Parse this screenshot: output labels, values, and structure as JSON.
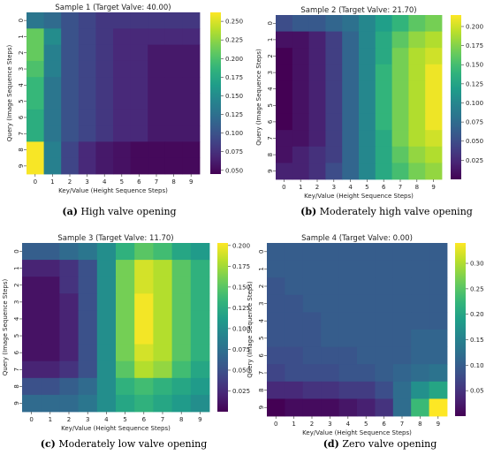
{
  "captions": [
    {
      "label": "(a)",
      "text": "High valve opening"
    },
    {
      "label": "(b)",
      "text": "Moderately high valve opening"
    },
    {
      "label": "(c)",
      "text": "Moderately low valve opening"
    },
    {
      "label": "(d)",
      "text": "Zero valve opening"
    }
  ],
  "chart_data": [
    {
      "type": "heatmap",
      "title": "Sample 1 (Target Valve: 40.00)",
      "xlabel": "Key/Value (Height Sequence Steps)",
      "ylabel": "Query (Image Sequence Steps)",
      "x_ticks": [
        "0",
        "1",
        "2",
        "3",
        "4",
        "5",
        "6",
        "7",
        "8",
        "9"
      ],
      "y_ticks": [
        "0",
        "1",
        "2",
        "3",
        "4",
        "5",
        "6",
        "7",
        "8",
        "9"
      ],
      "colormap": "viridis",
      "vmin": 0.045,
      "vmax": 0.262,
      "colorbar_ticks": [
        "0.050",
        "0.075",
        "0.100",
        "0.125",
        "0.150",
        "0.175",
        "0.200",
        "0.225",
        "0.250"
      ],
      "values": [
        [
          0.13,
          0.12,
          0.1,
          0.09,
          0.08,
          0.08,
          0.08,
          0.08,
          0.08,
          0.08
        ],
        [
          0.21,
          0.15,
          0.1,
          0.09,
          0.08,
          0.07,
          0.07,
          0.07,
          0.07,
          0.07
        ],
        [
          0.21,
          0.14,
          0.1,
          0.09,
          0.08,
          0.07,
          0.07,
          0.06,
          0.06,
          0.06
        ],
        [
          0.2,
          0.14,
          0.1,
          0.09,
          0.08,
          0.07,
          0.07,
          0.06,
          0.06,
          0.06
        ],
        [
          0.19,
          0.13,
          0.1,
          0.09,
          0.08,
          0.07,
          0.07,
          0.06,
          0.06,
          0.06
        ],
        [
          0.19,
          0.13,
          0.1,
          0.09,
          0.08,
          0.07,
          0.07,
          0.06,
          0.06,
          0.06
        ],
        [
          0.18,
          0.13,
          0.1,
          0.09,
          0.08,
          0.07,
          0.07,
          0.06,
          0.06,
          0.06
        ],
        [
          0.18,
          0.13,
          0.1,
          0.09,
          0.08,
          0.07,
          0.07,
          0.06,
          0.06,
          0.06
        ],
        [
          0.26,
          0.14,
          0.09,
          0.07,
          0.06,
          0.055,
          0.05,
          0.05,
          0.05,
          0.05
        ],
        [
          0.26,
          0.14,
          0.09,
          0.07,
          0.06,
          0.055,
          0.05,
          0.05,
          0.05,
          0.05
        ]
      ]
    },
    {
      "type": "heatmap",
      "title": "Sample 2 (Target Valve: 21.70)",
      "xlabel": "Key/Value (Height Sequence Steps)",
      "ylabel": "Query (Image Sequence Steps)",
      "x_ticks": [
        "0",
        "1",
        "2",
        "3",
        "4",
        "5",
        "6",
        "7",
        "8",
        "9"
      ],
      "y_ticks": [
        "0",
        "1",
        "2",
        "3",
        "4",
        "5",
        "6",
        "7",
        "8",
        "9"
      ],
      "colormap": "viridis",
      "vmin": 0.0,
      "vmax": 0.215,
      "colorbar_ticks": [
        "0.025",
        "0.050",
        "0.075",
        "0.100",
        "0.125",
        "0.150",
        "0.175",
        "0.200"
      ],
      "values": [
        [
          0.05,
          0.06,
          0.06,
          0.07,
          0.08,
          0.1,
          0.12,
          0.14,
          0.16,
          0.17
        ],
        [
          0.01,
          0.01,
          0.02,
          0.04,
          0.07,
          0.1,
          0.13,
          0.16,
          0.18,
          0.19
        ],
        [
          0.0,
          0.01,
          0.02,
          0.04,
          0.07,
          0.1,
          0.13,
          0.17,
          0.19,
          0.2
        ],
        [
          0.0,
          0.01,
          0.02,
          0.04,
          0.07,
          0.1,
          0.14,
          0.17,
          0.19,
          0.21
        ],
        [
          0.0,
          0.01,
          0.02,
          0.04,
          0.07,
          0.1,
          0.14,
          0.17,
          0.19,
          0.21
        ],
        [
          0.0,
          0.01,
          0.02,
          0.04,
          0.07,
          0.1,
          0.14,
          0.17,
          0.19,
          0.21
        ],
        [
          0.0,
          0.01,
          0.02,
          0.04,
          0.07,
          0.1,
          0.14,
          0.17,
          0.19,
          0.21
        ],
        [
          0.01,
          0.01,
          0.02,
          0.04,
          0.07,
          0.1,
          0.13,
          0.17,
          0.19,
          0.2
        ],
        [
          0.01,
          0.02,
          0.03,
          0.04,
          0.07,
          0.1,
          0.13,
          0.16,
          0.18,
          0.19
        ],
        [
          0.02,
          0.02,
          0.03,
          0.05,
          0.07,
          0.1,
          0.13,
          0.15,
          0.17,
          0.18
        ]
      ]
    },
    {
      "type": "heatmap",
      "title": "Sample 3 (Target Valve: 11.70)",
      "xlabel": "Key/Value (Height Sequence Steps)",
      "ylabel": "Query (Image Sequence Steps)",
      "x_ticks": [
        "0",
        "1",
        "2",
        "3",
        "4",
        "5",
        "6",
        "7",
        "8",
        "9"
      ],
      "y_ticks": [
        "0",
        "1",
        "2",
        "3",
        "4",
        "5",
        "6",
        "7",
        "8",
        "9"
      ],
      "colormap": "viridis",
      "vmin": 0.0,
      "vmax": 0.203,
      "colorbar_ticks": [
        "0.025",
        "0.050",
        "0.075",
        "0.100",
        "0.125",
        "0.150",
        "0.175",
        "0.200"
      ],
      "values": [
        [
          0.06,
          0.06,
          0.07,
          0.08,
          0.1,
          0.13,
          0.15,
          0.14,
          0.12,
          0.11
        ],
        [
          0.02,
          0.02,
          0.03,
          0.05,
          0.1,
          0.16,
          0.19,
          0.18,
          0.15,
          0.13
        ],
        [
          0.01,
          0.01,
          0.03,
          0.05,
          0.1,
          0.16,
          0.19,
          0.18,
          0.15,
          0.13
        ],
        [
          0.01,
          0.01,
          0.02,
          0.05,
          0.1,
          0.16,
          0.2,
          0.18,
          0.15,
          0.13
        ],
        [
          0.01,
          0.01,
          0.02,
          0.05,
          0.1,
          0.16,
          0.2,
          0.18,
          0.15,
          0.13
        ],
        [
          0.01,
          0.01,
          0.02,
          0.05,
          0.1,
          0.16,
          0.2,
          0.18,
          0.15,
          0.13
        ],
        [
          0.01,
          0.01,
          0.02,
          0.05,
          0.1,
          0.16,
          0.19,
          0.18,
          0.15,
          0.13
        ],
        [
          0.02,
          0.02,
          0.03,
          0.05,
          0.1,
          0.15,
          0.18,
          0.17,
          0.14,
          0.12
        ],
        [
          0.05,
          0.05,
          0.06,
          0.07,
          0.1,
          0.13,
          0.14,
          0.13,
          0.12,
          0.11
        ],
        [
          0.07,
          0.07,
          0.07,
          0.08,
          0.1,
          0.12,
          0.13,
          0.12,
          0.11,
          0.1
        ]
      ]
    },
    {
      "type": "heatmap",
      "title": "Sample 4 (Target Valve: 0.00)",
      "xlabel": "Key/Value (Height Sequence Steps)",
      "ylabel": "Query (Image Sequence Steps)",
      "x_ticks": [
        "0",
        "1",
        "2",
        "3",
        "4",
        "5",
        "6",
        "7",
        "8",
        "9"
      ],
      "y_ticks": [
        "0",
        "1",
        "2",
        "3",
        "4",
        "5",
        "6",
        "7",
        "8",
        "9"
      ],
      "colormap": "viridis",
      "vmin": 0.0,
      "vmax": 0.34,
      "colorbar_ticks": [
        "0.05",
        "0.10",
        "0.15",
        "0.20",
        "0.25",
        "0.30"
      ],
      "values": [
        [
          0.1,
          0.1,
          0.1,
          0.1,
          0.1,
          0.1,
          0.1,
          0.1,
          0.1,
          0.1
        ],
        [
          0.1,
          0.1,
          0.1,
          0.1,
          0.1,
          0.1,
          0.1,
          0.1,
          0.1,
          0.1
        ],
        [
          0.09,
          0.1,
          0.1,
          0.1,
          0.1,
          0.1,
          0.1,
          0.1,
          0.1,
          0.1
        ],
        [
          0.09,
          0.09,
          0.1,
          0.1,
          0.1,
          0.1,
          0.1,
          0.1,
          0.1,
          0.1
        ],
        [
          0.09,
          0.09,
          0.09,
          0.1,
          0.1,
          0.1,
          0.1,
          0.1,
          0.1,
          0.1
        ],
        [
          0.09,
          0.09,
          0.09,
          0.1,
          0.1,
          0.1,
          0.1,
          0.1,
          0.11,
          0.11
        ],
        [
          0.08,
          0.08,
          0.09,
          0.09,
          0.09,
          0.1,
          0.1,
          0.1,
          0.11,
          0.11
        ],
        [
          0.07,
          0.08,
          0.08,
          0.08,
          0.09,
          0.09,
          0.1,
          0.11,
          0.12,
          0.13
        ],
        [
          0.04,
          0.04,
          0.05,
          0.05,
          0.06,
          0.06,
          0.08,
          0.12,
          0.17,
          0.2
        ],
        [
          0.0,
          0.01,
          0.01,
          0.01,
          0.02,
          0.03,
          0.05,
          0.12,
          0.23,
          0.34
        ]
      ]
    }
  ]
}
